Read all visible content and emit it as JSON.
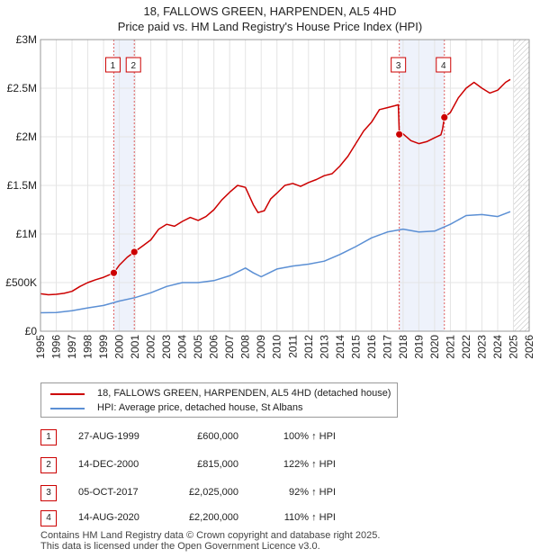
{
  "title_line1": "18, FALLOWS GREEN, HARPENDEN, AL5 4HD",
  "title_line2": "Price paid vs. HM Land Registry's House Price Index (HPI)",
  "chart_data": {
    "type": "line",
    "title": "18, FALLOWS GREEN, HARPENDEN, AL5 4HD — Price paid vs. HM Land Registry's House Price Index (HPI)",
    "xlim": [
      1995,
      2026
    ],
    "ylim": [
      0,
      3000000
    ],
    "x_ticks": [
      1995,
      1996,
      1997,
      1998,
      1999,
      2000,
      2001,
      2002,
      2003,
      2004,
      2005,
      2006,
      2007,
      2008,
      2009,
      2010,
      2011,
      2012,
      2013,
      2014,
      2015,
      2016,
      2017,
      2018,
      2019,
      2020,
      2021,
      2022,
      2023,
      2024,
      2025,
      2026
    ],
    "y_ticks": [
      {
        "value": 0,
        "label": "£0"
      },
      {
        "value": 500000,
        "label": "£500K"
      },
      {
        "value": 1000000,
        "label": "£1M"
      },
      {
        "value": 1500000,
        "label": "£1.5M"
      },
      {
        "value": 2000000,
        "label": "£2M"
      },
      {
        "value": 2500000,
        "label": "£2.5M"
      },
      {
        "value": 3000000,
        "label": "£3M"
      }
    ],
    "grid": true,
    "colors": {
      "property": "#cc0000",
      "hpi": "#5b8fd4",
      "shade": "#eef2fb",
      "vline": "#e06060"
    },
    "series": [
      {
        "name": "18, FALLOWS GREEN, HARPENDEN, AL5 4HD (detached house)",
        "color": "#cc0000",
        "points": [
          [
            1995.0,
            385000
          ],
          [
            1995.5,
            375000
          ],
          [
            1996.0,
            380000
          ],
          [
            1996.5,
            390000
          ],
          [
            1997.0,
            410000
          ],
          [
            1997.5,
            460000
          ],
          [
            1998.0,
            500000
          ],
          [
            1998.5,
            530000
          ],
          [
            1999.0,
            555000
          ],
          [
            1999.65,
            600000
          ],
          [
            2000.0,
            680000
          ],
          [
            2000.5,
            760000
          ],
          [
            2000.95,
            815000
          ],
          [
            2001.5,
            880000
          ],
          [
            2002.0,
            940000
          ],
          [
            2002.5,
            1050000
          ],
          [
            2003.0,
            1100000
          ],
          [
            2003.5,
            1080000
          ],
          [
            2004.0,
            1130000
          ],
          [
            2004.5,
            1170000
          ],
          [
            2005.0,
            1140000
          ],
          [
            2005.5,
            1180000
          ],
          [
            2006.0,
            1250000
          ],
          [
            2006.5,
            1350000
          ],
          [
            2007.0,
            1430000
          ],
          [
            2007.5,
            1500000
          ],
          [
            2008.0,
            1480000
          ],
          [
            2008.5,
            1300000
          ],
          [
            2008.8,
            1220000
          ],
          [
            2009.2,
            1240000
          ],
          [
            2009.6,
            1360000
          ],
          [
            2010.0,
            1420000
          ],
          [
            2010.5,
            1500000
          ],
          [
            2011.0,
            1520000
          ],
          [
            2011.5,
            1490000
          ],
          [
            2012.0,
            1530000
          ],
          [
            2012.5,
            1560000
          ],
          [
            2013.0,
            1600000
          ],
          [
            2013.5,
            1620000
          ],
          [
            2014.0,
            1700000
          ],
          [
            2014.5,
            1800000
          ],
          [
            2015.0,
            1930000
          ],
          [
            2015.5,
            2060000
          ],
          [
            2016.0,
            2150000
          ],
          [
            2016.5,
            2280000
          ],
          [
            2017.0,
            2300000
          ],
          [
            2017.5,
            2320000
          ],
          [
            2017.7,
            2330000
          ],
          [
            2017.76,
            2025000
          ],
          [
            2018.0,
            2030000
          ],
          [
            2018.5,
            1960000
          ],
          [
            2019.0,
            1930000
          ],
          [
            2019.5,
            1950000
          ],
          [
            2020.0,
            1990000
          ],
          [
            2020.4,
            2020000
          ],
          [
            2020.5,
            2080000
          ],
          [
            2020.62,
            2200000
          ],
          [
            2021.0,
            2250000
          ],
          [
            2021.5,
            2400000
          ],
          [
            2022.0,
            2500000
          ],
          [
            2022.5,
            2560000
          ],
          [
            2023.0,
            2500000
          ],
          [
            2023.5,
            2450000
          ],
          [
            2024.0,
            2480000
          ],
          [
            2024.5,
            2560000
          ],
          [
            2024.8,
            2590000
          ]
        ]
      },
      {
        "name": "HPI: Average price, detached house, St Albans",
        "color": "#5b8fd4",
        "points": [
          [
            1995.0,
            190000
          ],
          [
            1996.0,
            192000
          ],
          [
            1997.0,
            210000
          ],
          [
            1998.0,
            240000
          ],
          [
            1999.0,
            265000
          ],
          [
            2000.0,
            310000
          ],
          [
            2001.0,
            345000
          ],
          [
            2002.0,
            395000
          ],
          [
            2003.0,
            460000
          ],
          [
            2004.0,
            500000
          ],
          [
            2005.0,
            500000
          ],
          [
            2006.0,
            520000
          ],
          [
            2007.0,
            570000
          ],
          [
            2008.0,
            650000
          ],
          [
            2008.5,
            600000
          ],
          [
            2009.0,
            560000
          ],
          [
            2009.5,
            600000
          ],
          [
            2010.0,
            640000
          ],
          [
            2011.0,
            670000
          ],
          [
            2012.0,
            690000
          ],
          [
            2013.0,
            720000
          ],
          [
            2014.0,
            790000
          ],
          [
            2015.0,
            870000
          ],
          [
            2016.0,
            960000
          ],
          [
            2017.0,
            1020000
          ],
          [
            2018.0,
            1050000
          ],
          [
            2019.0,
            1020000
          ],
          [
            2020.0,
            1030000
          ],
          [
            2021.0,
            1100000
          ],
          [
            2022.0,
            1190000
          ],
          [
            2023.0,
            1200000
          ],
          [
            2024.0,
            1180000
          ],
          [
            2024.8,
            1230000
          ]
        ]
      }
    ],
    "sales": [
      {
        "id": "1",
        "x": 1999.65,
        "date": "27-AUG-1999",
        "price": "£600,000",
        "price_value": 600000,
        "hpi": "100% ↑ HPI"
      },
      {
        "id": "2",
        "x": 2000.95,
        "date": "14-DEC-2000",
        "price": "£815,000",
        "price_value": 815000,
        "hpi": "122% ↑ HPI"
      },
      {
        "id": "3",
        "x": 2017.76,
        "date": "05-OCT-2017",
        "price": "£2,025,000",
        "price_value": 2025000,
        "hpi": "92% ↑ HPI"
      },
      {
        "id": "4",
        "x": 2020.62,
        "date": "14-AUG-2020",
        "price": "£2,200,000",
        "price_value": 2200000,
        "hpi": "110% ↑ HPI"
      }
    ],
    "shaded_ranges": [
      [
        1999.65,
        2000.95
      ],
      [
        2017.76,
        2020.62
      ]
    ],
    "hatched_from": 2025.0
  },
  "legend": {
    "property_label": "18, FALLOWS GREEN, HARPENDEN, AL5 4HD (detached house)",
    "hpi_label": "HPI: Average price, detached house, St Albans"
  },
  "footer": {
    "line1": "Contains HM Land Registry data © Crown copyright and database right 2025.",
    "line2": "This data is licensed under the Open Government Licence v3.0."
  }
}
